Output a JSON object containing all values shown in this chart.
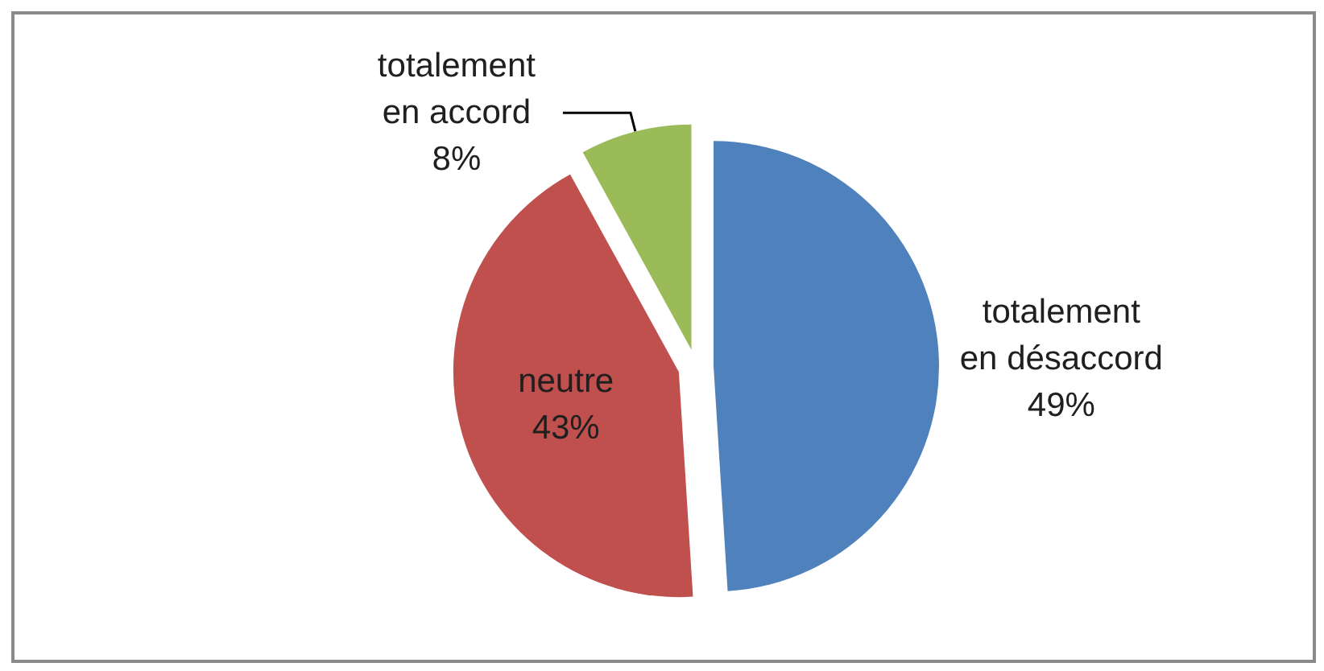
{
  "chart_data": {
    "type": "pie",
    "categories": [
      "totalement en désaccord",
      "neutre",
      "totalement en accord"
    ],
    "values": [
      49,
      43,
      8
    ],
    "value_labels": [
      "49%",
      "43%",
      "8%"
    ],
    "colors": [
      "#4f81bd",
      "#c0504d",
      "#9bbb59"
    ]
  }
}
